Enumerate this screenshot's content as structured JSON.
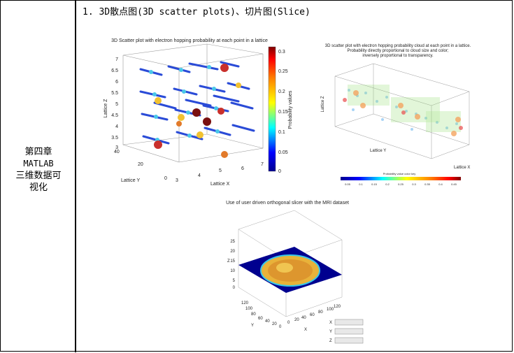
{
  "chapter": {
    "line1": "第四章",
    "line2": "MATLAB",
    "line3": "三维数据可",
    "line4": "视化"
  },
  "section_heading": "1. 3D散点图(3D scatter plots)、切片图(Slice)",
  "figures": [
    {
      "title": "3D Scatter plot with electron hopping probability at each point in a lattice",
      "xlabel": "Lattice X",
      "ylabel": "Lattice Y",
      "zlabel": "Lattice Z",
      "colorbar_label": "Probability values",
      "x_ticks": [
        "3",
        "4",
        "5",
        "6",
        "7"
      ],
      "y_ticks": [
        "0",
        "20",
        "40"
      ],
      "z_ticks": [
        "3",
        "3.5",
        "4",
        "4.5",
        "5",
        "5.5",
        "6",
        "6.5",
        "7"
      ],
      "colorbar_ticks": [
        "0",
        "0.05",
        "0.1",
        "0.15",
        "0.2",
        "0.25",
        "0.3"
      ]
    },
    {
      "title_lines": [
        "3D scatter plot with electron hopping probability cloud at each point in a lattice.",
        "Probability directly proportional to cloud size and color;",
        "inversely proportional to transparency."
      ],
      "xlabel": "Lattice X",
      "ylabel": "Lattice Y",
      "zlabel": "Lattice Z",
      "colorbar_label": "Probability value color key",
      "colorbar_ticks": [
        "0.05",
        "0.1",
        "0.15",
        "0.2",
        "0.25",
        "0.3",
        "0.35",
        "0.4",
        "0.45"
      ]
    },
    {
      "title": "Use of user driven orthogonal slicer with the MRI dataset",
      "xlabel": "X",
      "ylabel": "Y",
      "zlabel": "Z",
      "z_ticks": [
        "0",
        "5",
        "10",
        "15",
        "20",
        "25"
      ],
      "x_ticks": [
        "0",
        "20",
        "40",
        "60",
        "80",
        "100",
        "120"
      ],
      "y_ticks": [
        "0",
        "20",
        "40",
        "60",
        "80",
        "100",
        "120"
      ],
      "slider_labels": [
        "X",
        "Y",
        "Z"
      ]
    }
  ]
}
